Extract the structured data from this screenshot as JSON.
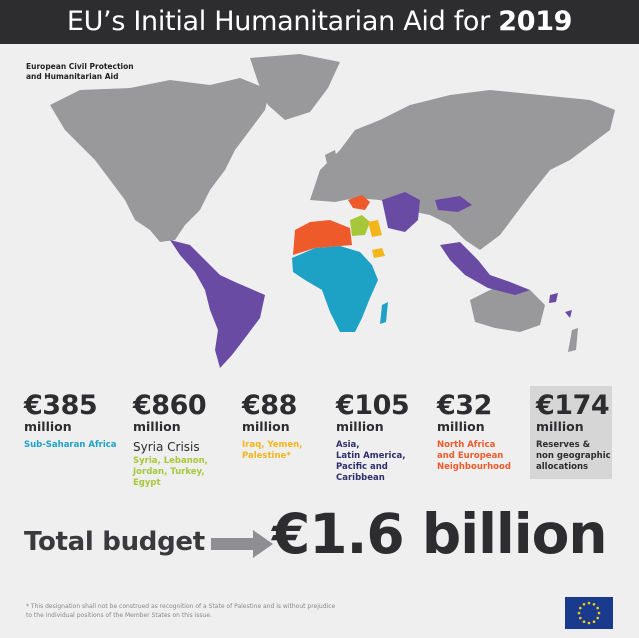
{
  "header": {
    "title_pre": "EU’s Initial Humanitarian Aid for ",
    "title_year": "2019"
  },
  "org": {
    "line1": "European Civil Protection",
    "line2": "and Humanitarian Aid"
  },
  "colors": {
    "sub_saharan": "#1da2c6",
    "syria": "#a6c73a",
    "iraq_yemen": "#f2b51a",
    "asia_latam": "#6a4ba3",
    "north_africa": "#ee5a2a",
    "land": "#99999b",
    "reserves_box": "#d6d6d7"
  },
  "figures": [
    {
      "amount": "€385",
      "unit": "million",
      "label1": "Sub-Saharan Africa",
      "color": "#1da2c6"
    },
    {
      "amount": "€860",
      "unit": "million",
      "title": "Syria Crisis",
      "label1": "Syria, Lebanon,",
      "label2": "Jordan, Turkey,",
      "label3": "Egypt",
      "color": "#a6c73a"
    },
    {
      "amount": "€88",
      "unit": "million",
      "label1": "Iraq, Yemen,",
      "label2": "Palestine*",
      "color": "#f2b51a"
    },
    {
      "amount": "€105",
      "unit": "million",
      "label1": "Asia,",
      "label2": "Latin America,",
      "label3": "Pacific and",
      "label4": "Caribbean",
      "color": "#2f2f6a"
    },
    {
      "amount": "€32",
      "unit": "million",
      "label1": "North Africa",
      "label2": "and European",
      "label3": "Neighbourhood",
      "color": "#ee5a2a"
    },
    {
      "amount": "€174",
      "unit": "million",
      "label1": "Reserves &",
      "label2": "non geographic",
      "label3": "allocations",
      "color": "#2d2d2f"
    }
  ],
  "total": {
    "label": "Total budget",
    "value": "€1.6 billion"
  },
  "footnote": {
    "line1": "* This designation shall not be construed as recognition of a State of Palestine and is without prejudice",
    "line2": "to the individual positions of the Member States on this issue."
  },
  "icons": {
    "arrow": "right-arrow-icon",
    "flag": "eu-flag-icon"
  }
}
